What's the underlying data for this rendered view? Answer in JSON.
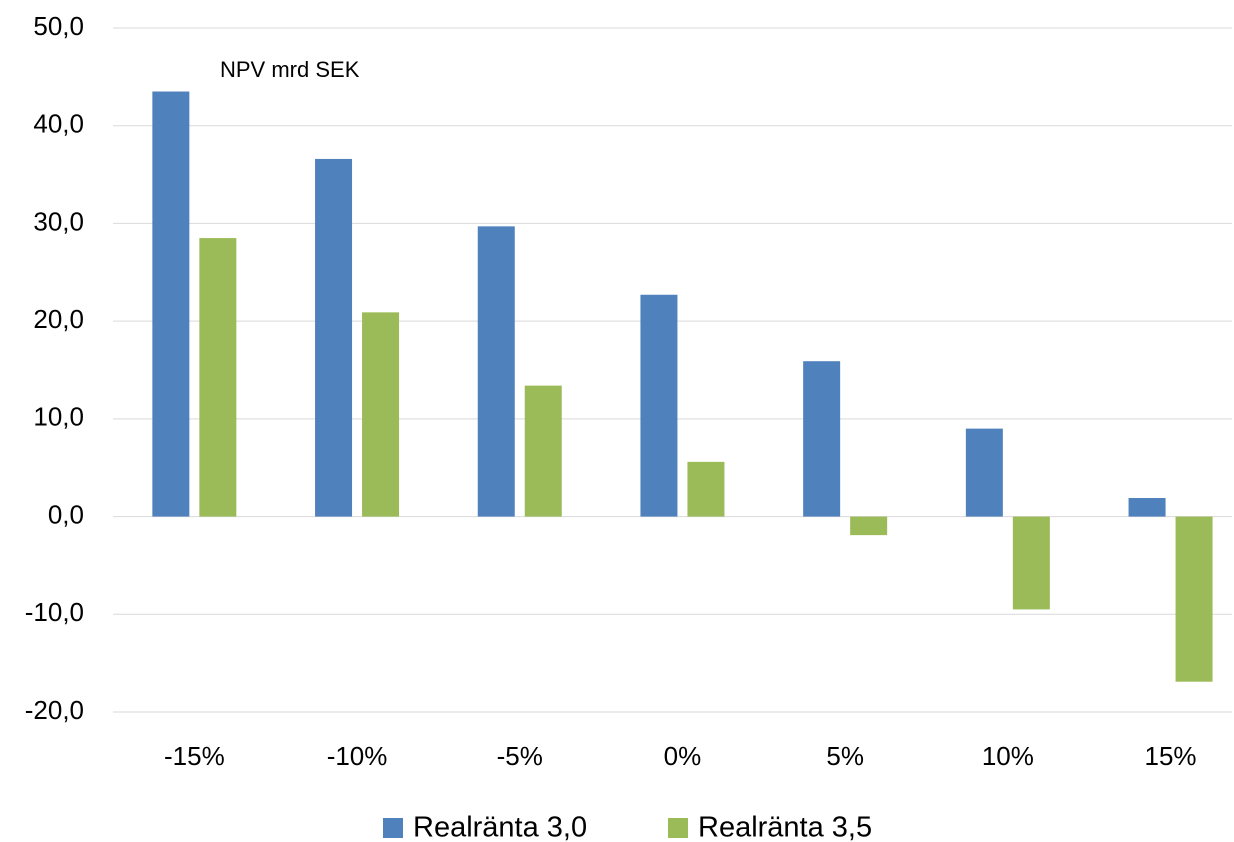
{
  "chart_data": {
    "type": "bar",
    "annotation": "NPV mrd SEK",
    "categories": [
      "-15%",
      "-10%",
      "-5%",
      "0%",
      "5%",
      "10%",
      "15%"
    ],
    "series": [
      {
        "name": "Realränta 3,0",
        "color": "#4f81bd",
        "values": [
          43.5,
          36.6,
          29.7,
          22.7,
          15.9,
          9.0,
          1.9
        ]
      },
      {
        "name": "Realränta 3,5",
        "color": "#9bbb59",
        "values": [
          28.5,
          20.9,
          13.4,
          5.6,
          -1.9,
          -9.5,
          -16.9
        ]
      }
    ],
    "ylim": [
      -20,
      50
    ],
    "yticks": [
      {
        "value": -20,
        "label": "-20,0"
      },
      {
        "value": -10,
        "label": "-10,0"
      },
      {
        "value": 0,
        "label": "0,0"
      },
      {
        "value": 10,
        "label": "10,0"
      },
      {
        "value": 20,
        "label": "20,0"
      },
      {
        "value": 30,
        "label": "30,0"
      },
      {
        "value": 40,
        "label": "40,0"
      },
      {
        "value": 50,
        "label": "50,0"
      }
    ],
    "grid": true
  }
}
